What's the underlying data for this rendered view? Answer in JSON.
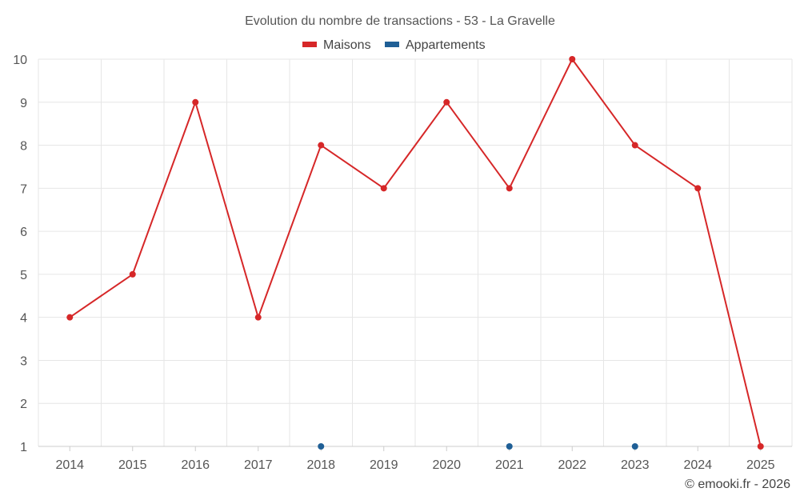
{
  "chart_data": {
    "type": "line",
    "title": "Evolution du nombre de transactions - 53 - La Gravelle",
    "categories": [
      "2014",
      "2015",
      "2016",
      "2017",
      "2018",
      "2019",
      "2020",
      "2021",
      "2022",
      "2023",
      "2024",
      "2025"
    ],
    "series": [
      {
        "name": "Maisons",
        "color": "#d62728",
        "line": true,
        "values": [
          4,
          5,
          9,
          4,
          8,
          7,
          9,
          7,
          10,
          8,
          7,
          1
        ]
      },
      {
        "name": "Appartements",
        "color": "#1f5f96",
        "line": false,
        "values": [
          null,
          null,
          null,
          null,
          1,
          null,
          null,
          1,
          null,
          1,
          null,
          null
        ]
      }
    ],
    "ylim": [
      1,
      10
    ],
    "yticks": [
      1,
      2,
      3,
      4,
      5,
      6,
      7,
      8,
      9,
      10
    ],
    "grid": true,
    "legend": "top-center"
  },
  "credit": "© emooki.fr - 2026"
}
